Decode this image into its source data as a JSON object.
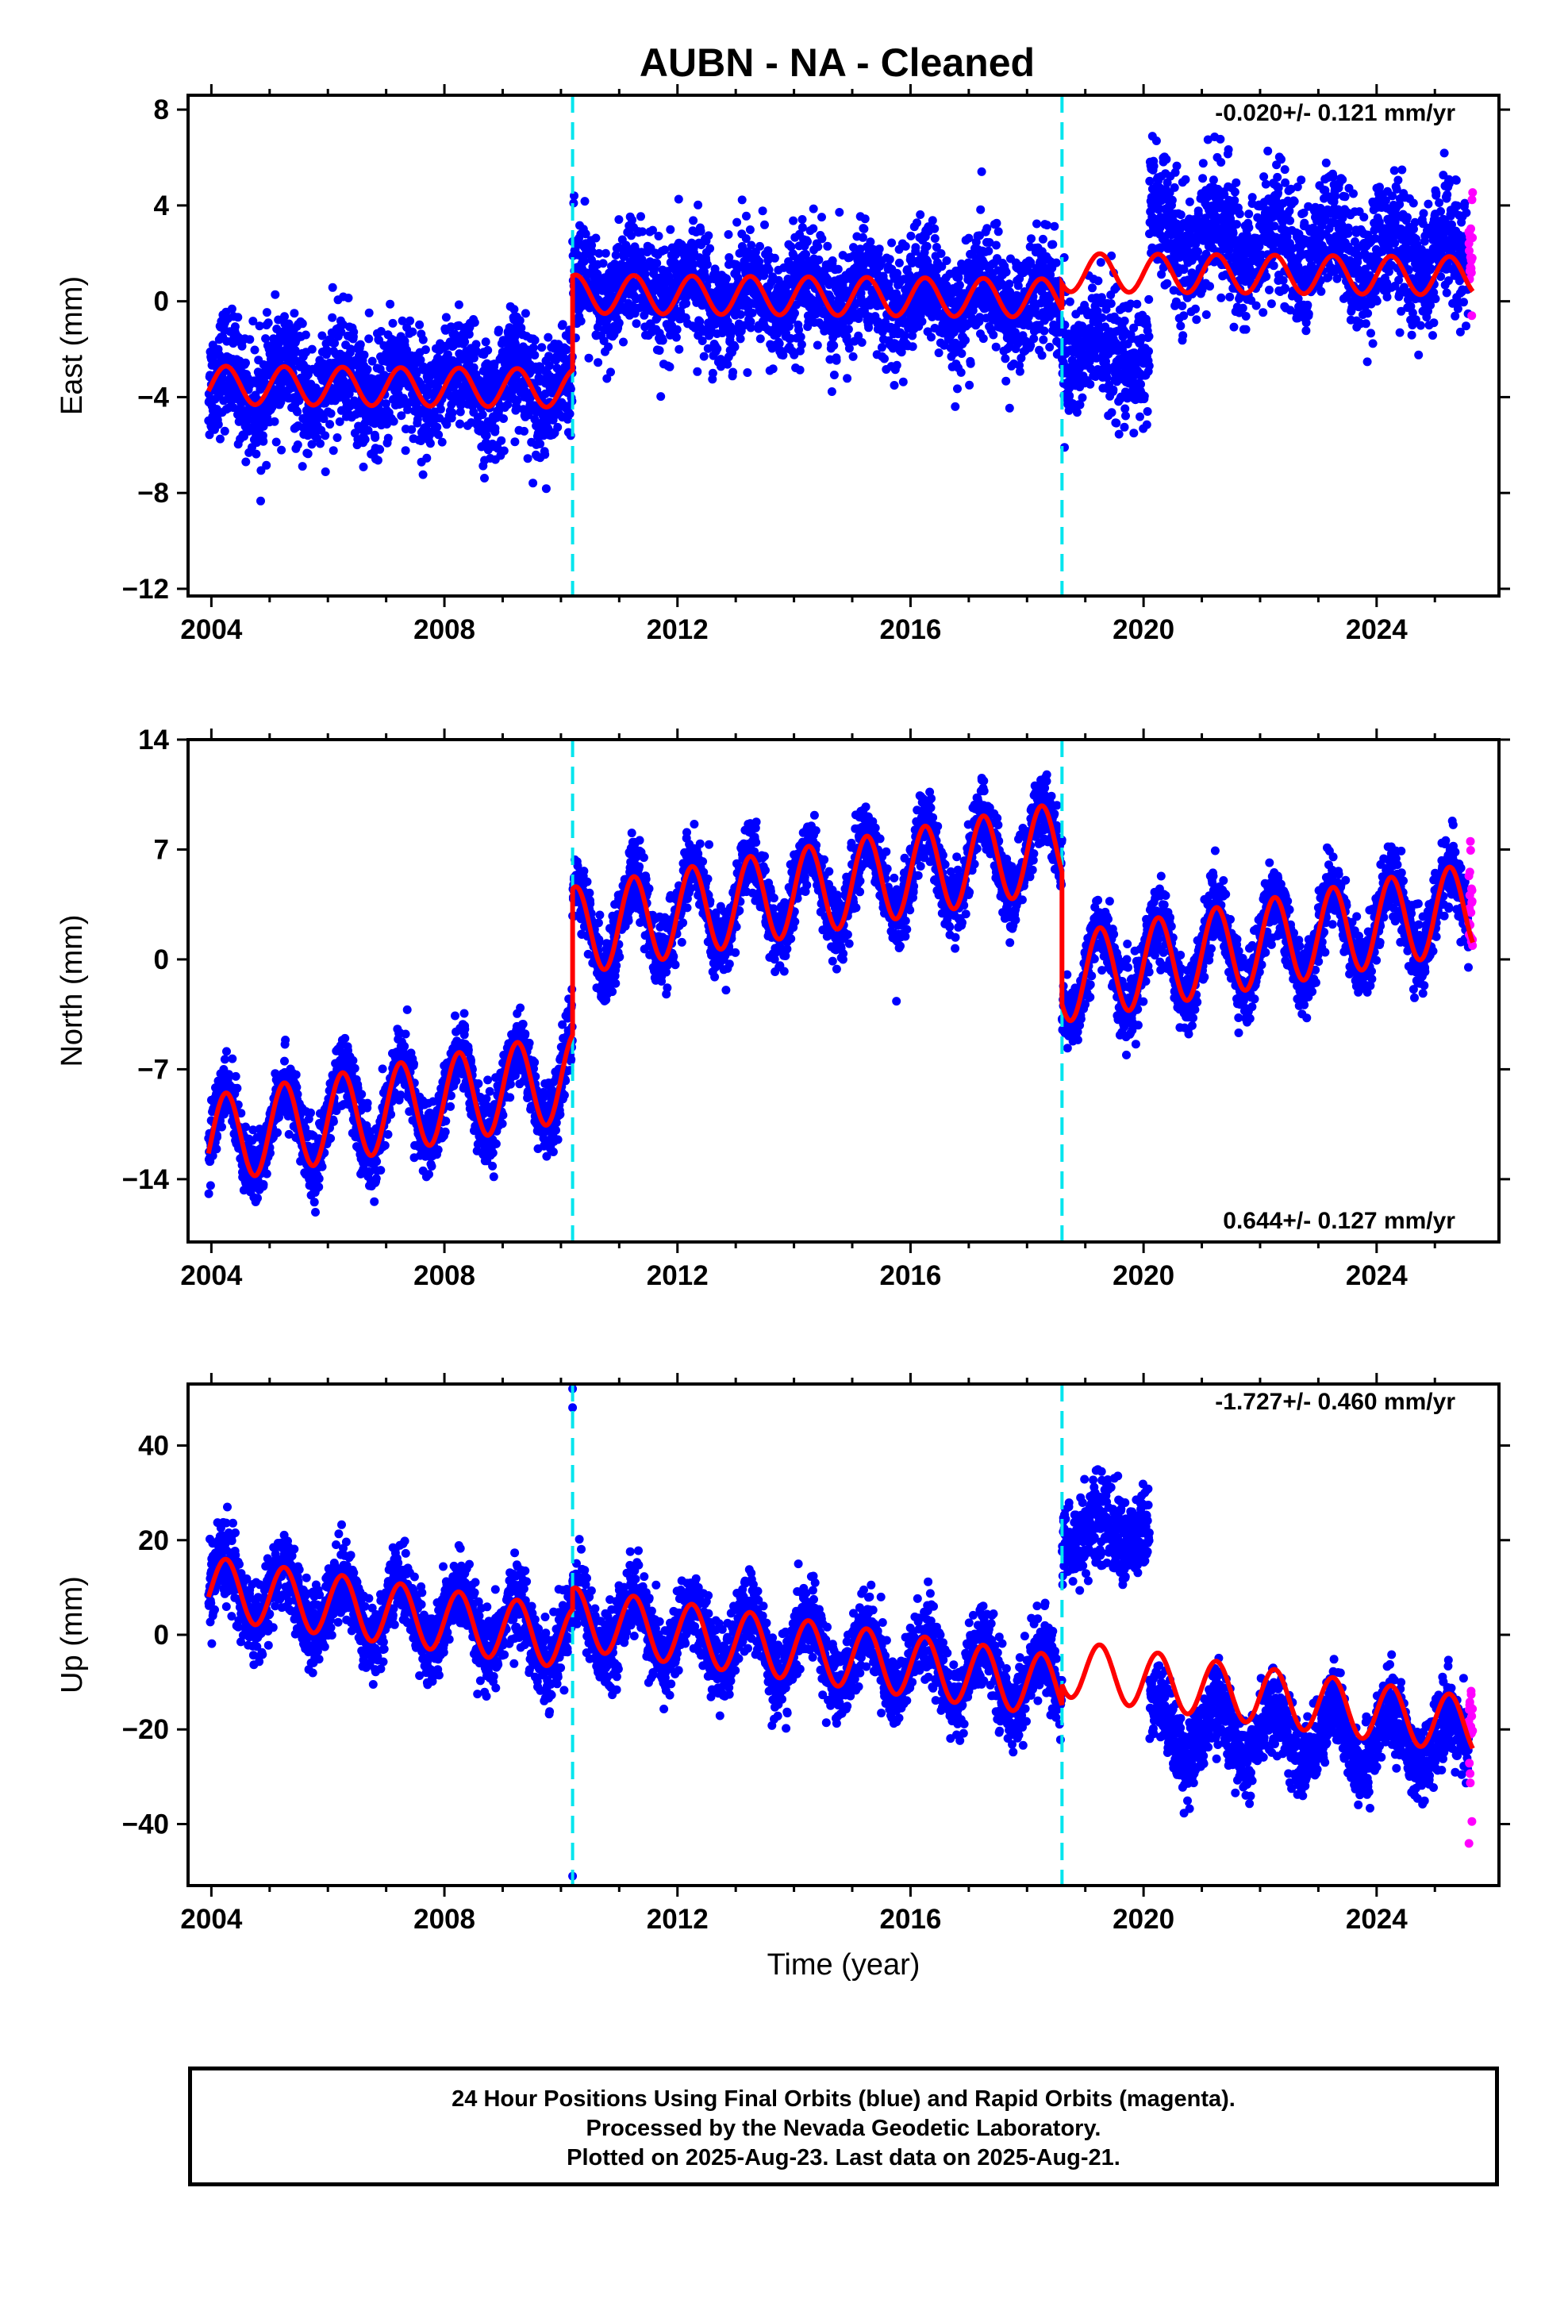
{
  "title": "AUBN  - NA - Cleaned",
  "footer": {
    "line1": "24 Hour Positions Using Final Orbits (blue) and Rapid Orbits (magenta).",
    "line2": "Processed by the Nevada Geodetic Laboratory.",
    "line3": "Plotted on 2025-Aug-23. Last data on 2025-Aug-21."
  },
  "colors": {
    "final_orbits": "#0000ff",
    "rapid_orbits": "#ff00ff",
    "model": "#ff0000",
    "offsets": "#00e5ee"
  },
  "chart_data": [
    {
      "type": "scatter",
      "title": "",
      "xlabel": "",
      "ylabel": "East (mm)",
      "xlim": [
        2003.6,
        2026.1
      ],
      "ylim": [
        -12.3,
        8.6
      ],
      "x_ticks": [
        "2004",
        "2008",
        "2012",
        "2016",
        "2020",
        "2024"
      ],
      "y_ticks": [
        "8",
        "4",
        "0",
        "−4",
        "−8",
        "−12"
      ],
      "rate_annotation": "-0.020+/- 0.121 mm/yr",
      "offset_epochs": [
        2010.2,
        2018.6
      ],
      "series": [
        {
          "label": "final orbits",
          "color": "#0000ff",
          "segments": [
            {
              "x_start": 2003.95,
              "x_end": 2010.2,
              "level": -3.5,
              "amplitude": 0.8,
              "trend": 0.0,
              "scatter": 1.2
            },
            {
              "x_start": 2010.2,
              "x_end": 2018.6,
              "level": 0.5,
              "amplitude": 0.8,
              "trend": -0.06,
              "scatter": 1.2
            },
            {
              "x_start": 2018.6,
              "x_end": 2020.1,
              "level": -2.0,
              "amplitude": 0.6,
              "trend": -0.2,
              "scatter": 1.3
            },
            {
              "x_start": 2020.1,
              "x_end": 2025.58,
              "level": 2.8,
              "amplitude": 0.9,
              "trend": -0.2,
              "scatter": 1.3
            }
          ]
        },
        {
          "label": "rapid orbits",
          "color": "#ff00ff",
          "segments": [
            {
              "x_start": 2025.58,
              "x_end": 2025.65,
              "level": 2.0,
              "amplitude": 0,
              "trend": 0,
              "scatter": 1.2
            }
          ]
        },
        {
          "label": "model",
          "color": "#ff0000",
          "segments": [
            {
              "x_start": 2003.95,
              "x_end": 2010.2,
              "level": -3.5,
              "amplitude": 0.8,
              "trend": -0.02
            },
            {
              "x_start": 2010.2,
              "x_end": 2018.6,
              "level": 0.3,
              "amplitude": 0.8,
              "trend": -0.02
            },
            {
              "x_start": 2018.6,
              "x_end": 2025.65,
              "level": 1.2,
              "amplitude": 0.8,
              "trend": -0.02
            }
          ]
        }
      ]
    },
    {
      "type": "scatter",
      "title": "",
      "xlabel": "",
      "ylabel": "North (mm)",
      "xlim": [
        2003.6,
        2026.1
      ],
      "ylim": [
        -18.0,
        14.0
      ],
      "x_ticks": [
        "2004",
        "2008",
        "2012",
        "2016",
        "2020",
        "2024"
      ],
      "y_ticks": [
        "14",
        "7",
        "0",
        "−7",
        "−14"
      ],
      "rate_annotation": "0.644+/- 0.127 mm/yr",
      "offset_epochs": [
        2010.2,
        2018.6
      ],
      "series": [
        {
          "label": "final orbits",
          "color": "#0000ff",
          "segments": [
            {
              "x_start": 2003.95,
              "x_end": 2010.2,
              "level": -11.5,
              "amplitude": 2.8,
              "trend": 0.65,
              "scatter": 1.1
            },
            {
              "x_start": 2010.2,
              "x_end": 2018.6,
              "level": 1.8,
              "amplitude": 2.8,
              "trend": 0.65,
              "scatter": 1.1
            },
            {
              "x_start": 2018.6,
              "x_end": 2025.58,
              "level": -1.2,
              "amplitude": 2.8,
              "trend": 0.65,
              "scatter": 1.1
            }
          ]
        },
        {
          "label": "rapid orbits",
          "color": "#ff00ff",
          "segments": [
            {
              "x_start": 2025.58,
              "x_end": 2025.65,
              "level": 3.0,
              "amplitude": 0,
              "trend": 0,
              "scatter": 2.0
            }
          ]
        },
        {
          "label": "model",
          "color": "#ff0000",
          "segments": [
            {
              "x_start": 2003.95,
              "x_end": 2010.2,
              "level": -11.5,
              "amplitude": 2.8,
              "trend": 0.644
            },
            {
              "x_start": 2010.2,
              "x_end": 2018.6,
              "level": 1.8,
              "amplitude": 2.8,
              "trend": 0.644
            },
            {
              "x_start": 2018.6,
              "x_end": 2025.65,
              "level": -1.2,
              "amplitude": 2.8,
              "trend": 0.644
            }
          ]
        }
      ]
    },
    {
      "type": "scatter",
      "title": "",
      "xlabel": "Time (year)",
      "ylabel": "Up (mm)",
      "xlim": [
        2003.6,
        2026.1
      ],
      "ylim": [
        -53.0,
        53.0
      ],
      "x_ticks": [
        "2004",
        "2008",
        "2012",
        "2016",
        "2020",
        "2024"
      ],
      "y_ticks": [
        "40",
        "20",
        "0",
        "−20",
        "−40"
      ],
      "rate_annotation": "-1.727+/- 0.460 mm/yr",
      "offset_epochs": [
        2010.2,
        2018.6
      ],
      "series": [
        {
          "label": "final orbits",
          "color": "#0000ff",
          "segments": [
            {
              "x_start": 2003.95,
              "x_end": 2010.2,
              "level": 10.0,
              "amplitude": 6.5,
              "trend": -1.7,
              "scatter": 4.0
            },
            {
              "x_start": 2010.2,
              "x_end": 2018.6,
              "level": 3.5,
              "amplitude": 6.5,
              "trend": -1.7,
              "scatter": 4.0
            },
            {
              "x_start": 2018.6,
              "x_end": 2020.1,
              "level": 22.0,
              "amplitude": 3.0,
              "trend": 0.0,
              "scatter": 4.5
            },
            {
              "x_start": 2020.1,
              "x_end": 2025.58,
              "level": -20.0,
              "amplitude": 6.0,
              "trend": -0.5,
              "scatter": 4.0
            }
          ]
        },
        {
          "label": "rapid orbits",
          "color": "#ff00ff",
          "segments": [
            {
              "x_start": 2025.58,
              "x_end": 2025.65,
              "level": -20.0,
              "amplitude": 0,
              "trend": 0,
              "scatter": 12.0
            }
          ]
        },
        {
          "label": "model",
          "color": "#ff0000",
          "segments": [
            {
              "x_start": 2003.95,
              "x_end": 2010.2,
              "level": 10.0,
              "amplitude": 6.5,
              "trend": -1.727
            },
            {
              "x_start": 2010.2,
              "x_end": 2018.6,
              "level": 3.5,
              "amplitude": 6.5,
              "trend": -1.727
            },
            {
              "x_start": 2018.6,
              "x_end": 2025.65,
              "level": -7.0,
              "amplitude": 6.0,
              "trend": -1.727
            }
          ]
        }
      ],
      "outliers": [
        {
          "x": 2010.2,
          "y": 52
        },
        {
          "x": 2010.2,
          "y": 48
        },
        {
          "x": 2010.2,
          "y": -51
        }
      ]
    }
  ]
}
